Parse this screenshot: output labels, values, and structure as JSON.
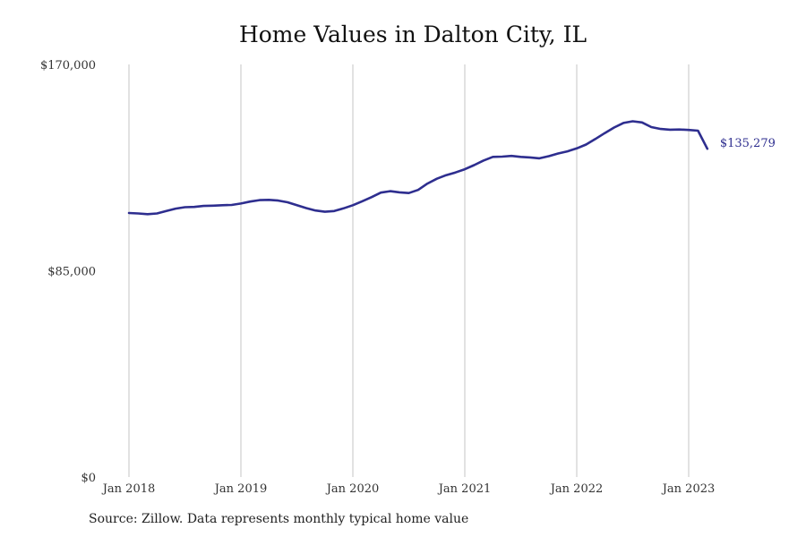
{
  "chart_data": {
    "type": "line",
    "title": "Home Values in Dalton City, IL",
    "xlabel": "",
    "ylabel": "",
    "ylim": [
      0,
      170000
    ],
    "y_ticks": [
      "$0",
      "$85,000",
      "$170,000"
    ],
    "y_tick_values": [
      0,
      85000,
      170000
    ],
    "x_ticks": [
      "Jan 2018",
      "Jan 2019",
      "Jan 2020",
      "Jan 2021",
      "Jan 2022",
      "Jan 2023"
    ],
    "grid": "vertical",
    "line_color": "#2e2e8f",
    "end_label": "$135,279",
    "series": [
      {
        "x": [
          "2018-01",
          "2018-02",
          "2018-03",
          "2018-04",
          "2018-05",
          "2018-06",
          "2018-07",
          "2018-08",
          "2018-09",
          "2018-10",
          "2018-11",
          "2018-12",
          "2019-01",
          "2019-02",
          "2019-03",
          "2019-04",
          "2019-05",
          "2019-06",
          "2019-07",
          "2019-08",
          "2019-09",
          "2019-10",
          "2019-11",
          "2019-12",
          "2020-01",
          "2020-02",
          "2020-03",
          "2020-04",
          "2020-05",
          "2020-06",
          "2020-07",
          "2020-08",
          "2020-09",
          "2020-10",
          "2020-11",
          "2020-12",
          "2021-01",
          "2021-02",
          "2021-03",
          "2021-04",
          "2021-05",
          "2021-06",
          "2021-07",
          "2021-08",
          "2021-09",
          "2021-10",
          "2021-11",
          "2021-12",
          "2022-01",
          "2022-02",
          "2022-03",
          "2022-04",
          "2022-05",
          "2022-06",
          "2022-07",
          "2022-08",
          "2022-09",
          "2022-10",
          "2022-11",
          "2022-12",
          "2023-01",
          "2023-02",
          "2023-03"
        ],
        "values": [
          108800,
          108600,
          108300,
          108600,
          109600,
          110600,
          111200,
          111300,
          111700,
          111800,
          112000,
          112100,
          112700,
          113500,
          114100,
          114200,
          113900,
          113200,
          112000,
          110800,
          109800,
          109300,
          109600,
          110700,
          112000,
          113600,
          115300,
          117200,
          117800,
          117300,
          117000,
          118300,
          120900,
          122900,
          124400,
          125500,
          126800,
          128500,
          130400,
          131900,
          132000,
          132300,
          131900,
          131700,
          131300,
          132200,
          133300,
          134200,
          135400,
          137000,
          139300,
          141700,
          144000,
          145900,
          146600,
          146100,
          144200,
          143400,
          143100,
          143200,
          143000,
          142700,
          135279
        ]
      }
    ]
  },
  "source": "Source: Zillow. Data represents monthly typical home value"
}
